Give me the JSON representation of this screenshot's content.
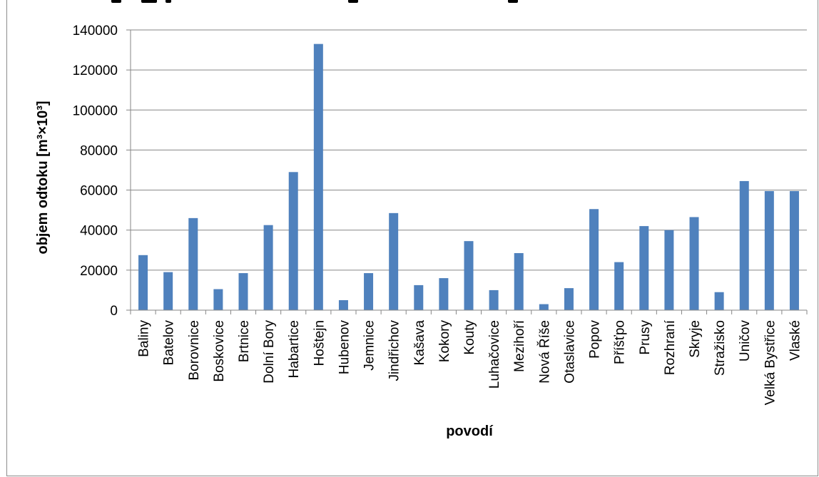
{
  "chart_data": {
    "type": "bar",
    "title": "",
    "xlabel": "povodí",
    "ylabel": "objem odtoku [m³×10³]",
    "ylim": [
      0,
      140000
    ],
    "yticks": [
      0,
      20000,
      40000,
      60000,
      80000,
      100000,
      120000,
      140000
    ],
    "ytick_labels": [
      "0",
      "20000",
      "40000",
      "60000",
      "80000",
      "100000",
      "120000",
      "140000"
    ],
    "grid": true,
    "legend": "none",
    "bar_color": "#4f81bd",
    "categories": [
      "Baliny",
      "Batelov",
      "Borovnice",
      "Boskovice",
      "Brtnice",
      "Dolní Bory",
      "Habartice",
      "Hoštejn",
      "Hubenov",
      "Jemnice",
      "Jindřichov",
      "Kašava",
      "Kokory",
      "Kouty",
      "Luhačovice",
      "Mezihoří",
      "Nová Říše",
      "Otaslavice",
      "Popov",
      "Příšťpo",
      "Prusy",
      "Rozhraní",
      "Skryje",
      "Stražisko",
      "Uničov",
      "Velká Bystřice",
      "Vlaské"
    ],
    "values": [
      27500,
      19000,
      46000,
      10500,
      18500,
      42500,
      69000,
      133000,
      5000,
      18500,
      48500,
      12500,
      16000,
      34500,
      10000,
      28500,
      3000,
      11000,
      50500,
      24000,
      42000,
      40000,
      46500,
      9000,
      64500,
      59500,
      59500
    ]
  }
}
